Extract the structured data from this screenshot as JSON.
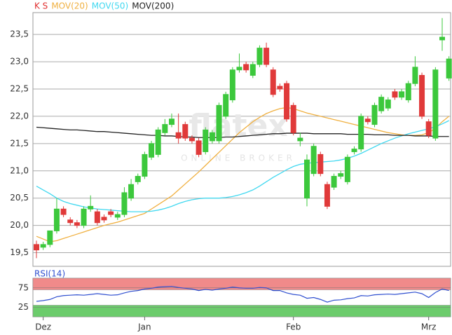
{
  "chart_data": [
    {
      "type": "candlestick",
      "name": "K S",
      "name_color": "#e03030",
      "watermark": "flatex",
      "watermark_sub": "ONLINE BROKER",
      "categories": [
        null,
        "Dez",
        null,
        null,
        null,
        null,
        null,
        null,
        null,
        null,
        null,
        null,
        null,
        null,
        null,
        null,
        "Jan",
        null,
        null,
        null,
        null,
        null,
        null,
        null,
        null,
        null,
        null,
        null,
        null,
        null,
        null,
        null,
        null,
        null,
        null,
        null,
        null,
        null,
        "Feb",
        null,
        null,
        null,
        null,
        null,
        null,
        null,
        null,
        null,
        null,
        null,
        null,
        null,
        null,
        null,
        null,
        null,
        null,
        null,
        "Mrz",
        null,
        null,
        null
      ],
      "open": [
        19.65,
        19.6,
        19.65,
        19.9,
        20.3,
        20.1,
        20.05,
        20.0,
        20.3,
        20.25,
        20.15,
        20.25,
        20.15,
        20.2,
        20.5,
        20.8,
        20.9,
        21.25,
        21.3,
        21.7,
        21.85,
        21.7,
        21.85,
        21.6,
        21.55,
        21.35,
        21.55,
        21.55,
        22.0,
        22.3,
        22.85,
        22.95,
        22.75,
        22.95,
        23.25,
        22.85,
        22.55,
        22.6,
        22.2,
        21.55,
        20.5,
        20.95,
        21.3,
        20.75,
        20.7,
        20.9,
        20.8,
        21.35,
        21.4,
        21.95,
        21.85,
        22.1,
        22.15,
        22.45,
        22.35,
        22.3,
        22.6,
        22.75,
        21.9,
        21.6,
        23.4,
        22.7
      ],
      "high": [
        19.72,
        19.7,
        19.9,
        20.5,
        20.35,
        20.15,
        20.1,
        20.35,
        20.55,
        20.3,
        20.2,
        20.3,
        20.25,
        20.7,
        20.85,
        20.95,
        21.35,
        21.55,
        21.8,
        21.95,
        22.05,
        22.05,
        21.9,
        21.65,
        21.6,
        21.8,
        21.75,
        22.25,
        22.45,
        22.9,
        23.15,
        23.0,
        23.0,
        23.3,
        23.35,
        22.9,
        22.6,
        22.65,
        22.25,
        21.7,
        21.3,
        21.5,
        21.35,
        20.8,
        20.95,
        21.0,
        21.3,
        21.45,
        22.05,
        22.0,
        22.25,
        22.4,
        22.35,
        22.5,
        22.5,
        22.65,
        23.1,
        22.8,
        21.95,
        22.9,
        23.8,
        23.1
      ],
      "low": [
        19.4,
        19.55,
        19.6,
        19.85,
        20.15,
        20.0,
        19.95,
        19.95,
        20.25,
        20.0,
        20.05,
        20.15,
        20.1,
        20.15,
        20.45,
        20.75,
        20.85,
        21.2,
        21.25,
        21.65,
        21.8,
        21.5,
        21.55,
        21.5,
        21.25,
        21.3,
        21.5,
        21.5,
        21.95,
        22.25,
        22.8,
        22.8,
        22.7,
        22.9,
        22.9,
        22.35,
        22.45,
        21.9,
        21.65,
        21.45,
        20.35,
        20.9,
        20.9,
        20.3,
        20.65,
        20.85,
        20.75,
        21.3,
        21.35,
        21.85,
        21.8,
        22.05,
        22.1,
        22.3,
        22.3,
        22.25,
        22.55,
        21.95,
        21.6,
        21.55,
        23.2,
        22.65
      ],
      "close": [
        19.55,
        19.65,
        19.9,
        20.3,
        20.2,
        20.05,
        20.0,
        20.3,
        20.35,
        20.05,
        20.1,
        20.2,
        20.2,
        20.6,
        20.75,
        20.9,
        21.3,
        21.5,
        21.75,
        21.85,
        21.95,
        21.6,
        21.6,
        21.55,
        21.3,
        21.75,
        21.7,
        22.2,
        22.4,
        22.85,
        22.9,
        22.85,
        22.95,
        23.25,
        22.95,
        22.4,
        22.5,
        21.95,
        21.7,
        21.6,
        21.2,
        21.45,
        20.95,
        20.35,
        20.9,
        20.95,
        21.25,
        21.4,
        22.0,
        21.9,
        22.2,
        22.35,
        22.3,
        22.35,
        22.45,
        22.6,
        22.9,
        22.0,
        21.65,
        22.85,
        23.45,
        23.05
      ],
      "up_color": "#3cc83c",
      "down_color": "#e03a3a",
      "overlays": [
        {
          "name": "MOV(20)",
          "color": "#f0b040",
          "values": [
            19.8,
            19.75,
            19.7,
            19.72,
            19.76,
            19.8,
            19.84,
            19.88,
            19.92,
            19.96,
            20.0,
            20.03,
            20.06,
            20.1,
            20.14,
            20.18,
            20.22,
            20.3,
            20.38,
            20.46,
            20.54,
            20.65,
            20.76,
            20.87,
            20.98,
            21.1,
            21.22,
            21.34,
            21.46,
            21.58,
            21.7,
            21.8,
            21.9,
            21.98,
            22.05,
            22.1,
            22.14,
            22.16,
            22.14,
            22.1,
            22.06,
            22.03,
            22.0,
            21.97,
            21.94,
            21.91,
            21.88,
            21.85,
            21.82,
            21.79,
            21.76,
            21.73,
            21.7,
            21.68,
            21.66,
            21.65,
            21.65,
            21.66,
            21.7,
            21.78,
            21.9,
            22.0
          ]
        },
        {
          "name": "MOV(50)",
          "color": "#40d8f0",
          "values": [
            20.72,
            20.65,
            20.58,
            20.5,
            20.44,
            20.4,
            20.37,
            20.34,
            20.32,
            20.3,
            20.29,
            20.28,
            20.27,
            20.26,
            20.25,
            20.25,
            20.25,
            20.26,
            20.28,
            20.31,
            20.35,
            20.4,
            20.44,
            20.47,
            20.49,
            20.5,
            20.5,
            20.5,
            20.51,
            20.53,
            20.56,
            20.6,
            20.65,
            20.72,
            20.8,
            20.88,
            20.95,
            21.02,
            21.08,
            21.12,
            21.14,
            21.15,
            21.16,
            21.17,
            21.18,
            21.2,
            21.23,
            21.27,
            21.32,
            21.38,
            21.44,
            21.5,
            21.55,
            21.6,
            21.64,
            21.68,
            21.71,
            21.74,
            21.77,
            21.81,
            21.86,
            21.92
          ]
        },
        {
          "name": "MOV(200)",
          "color": "#222222",
          "values": [
            21.8,
            21.79,
            21.78,
            21.77,
            21.76,
            21.75,
            21.75,
            21.74,
            21.73,
            21.72,
            21.72,
            21.71,
            21.7,
            21.69,
            21.68,
            21.67,
            21.66,
            21.65,
            21.65,
            21.64,
            21.64,
            21.63,
            21.62,
            21.62,
            21.61,
            21.61,
            21.61,
            21.61,
            21.62,
            21.62,
            21.63,
            21.64,
            21.65,
            21.66,
            21.67,
            21.68,
            21.68,
            21.69,
            21.69,
            21.69,
            21.69,
            21.68,
            21.68,
            21.68,
            21.68,
            21.68,
            21.67,
            21.67,
            21.67,
            21.67,
            21.66,
            21.66,
            21.66,
            21.65,
            21.65,
            21.65,
            21.64,
            21.64,
            21.64,
            21.63,
            21.63,
            21.63
          ]
        }
      ],
      "ylim": [
        19.25,
        23.9
      ],
      "yticks": [
        {
          "value": 19.5,
          "label": "19,5"
        },
        {
          "value": 20.0,
          "label": "20,0"
        },
        {
          "value": 20.5,
          "label": "20,5"
        },
        {
          "value": 21.0,
          "label": "21,0"
        },
        {
          "value": 21.5,
          "label": "21,5"
        },
        {
          "value": 22.0,
          "label": "22,0"
        },
        {
          "value": 22.5,
          "label": "22,5"
        },
        {
          "value": 23.0,
          "label": "23,0"
        },
        {
          "value": 23.5,
          "label": "23,5"
        }
      ],
      "grid": true
    },
    {
      "type": "line",
      "series": [
        {
          "name": "RSI(14)",
          "color": "#3050d0",
          "values": [
            40,
            42,
            45,
            52,
            55,
            56,
            57,
            56,
            58,
            60,
            58,
            56,
            57,
            62,
            66,
            68,
            72,
            74,
            77,
            78,
            79,
            76,
            74,
            72,
            68,
            71,
            69,
            72,
            74,
            77,
            75,
            74,
            74,
            76,
            75,
            68,
            68,
            62,
            58,
            56,
            48,
            50,
            45,
            38,
            43,
            44,
            47,
            49,
            55,
            54,
            57,
            58,
            59,
            58,
            60,
            62,
            64,
            60,
            50,
            63,
            72,
            68
          ]
        }
      ],
      "ylim": [
        0,
        100
      ],
      "yticks": [
        25,
        75
      ],
      "grid": true,
      "bands": [
        {
          "from": 70,
          "to": 100,
          "color": "#f08a8a"
        },
        {
          "from": 0,
          "to": 30,
          "color": "#6ccc6c"
        }
      ]
    }
  ]
}
